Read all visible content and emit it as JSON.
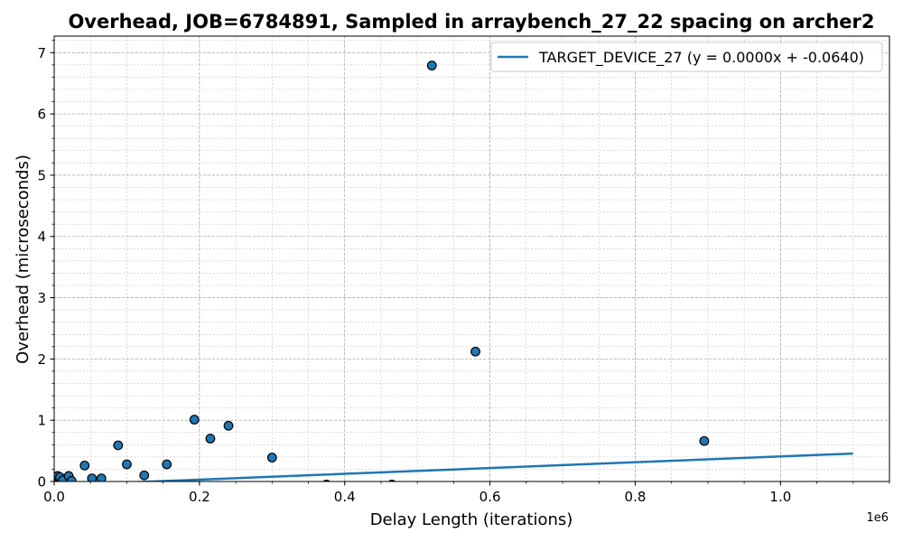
{
  "chart_data": {
    "type": "scatter",
    "title": "Overhead, JOB=6784891, Sampled in arraybench_27_22 spacing on archer2",
    "xlabel": "Delay Length (iterations)",
    "ylabel": "Overhead (microseconds)",
    "x_offset_label": "1e6",
    "xlim": [
      0,
      1150000
    ],
    "ylim": [
      0,
      7.27
    ],
    "x_ticks": [
      {
        "value": 0,
        "label": "0.0"
      },
      {
        "value": 200000,
        "label": "0.2"
      },
      {
        "value": 400000,
        "label": "0.4"
      },
      {
        "value": 600000,
        "label": "0.6"
      },
      {
        "value": 800000,
        "label": "0.8"
      },
      {
        "value": 1000000,
        "label": "1.0"
      }
    ],
    "y_ticks": [
      {
        "value": 0,
        "label": "0"
      },
      {
        "value": 1,
        "label": "1"
      },
      {
        "value": 2,
        "label": "2"
      },
      {
        "value": 3,
        "label": "3"
      },
      {
        "value": 4,
        "label": "4"
      },
      {
        "value": 5,
        "label": "5"
      },
      {
        "value": 6,
        "label": "6"
      },
      {
        "value": 7,
        "label": "7"
      }
    ],
    "grid": true,
    "legend_position": "top-right",
    "point_color": "#1f77b4",
    "line_color": "#1f77b4",
    "points": [
      {
        "x": 0,
        "y": 0.03
      },
      {
        "x": 1000,
        "y": 0.06
      },
      {
        "x": 3000,
        "y": 0.08
      },
      {
        "x": 5000,
        "y": 0.09
      },
      {
        "x": 8000,
        "y": 0.07
      },
      {
        "x": 12000,
        "y": 0.02
      },
      {
        "x": 20000,
        "y": 0.09
      },
      {
        "x": 24000,
        "y": 0.01
      },
      {
        "x": 42000,
        "y": 0.26
      },
      {
        "x": 52000,
        "y": 0.05
      },
      {
        "x": 65000,
        "y": 0.05
      },
      {
        "x": 88000,
        "y": 0.59
      },
      {
        "x": 100000,
        "y": 0.28
      },
      {
        "x": 124000,
        "y": 0.1
      },
      {
        "x": 155000,
        "y": 0.28
      },
      {
        "x": 193000,
        "y": 1.01
      },
      {
        "x": 215000,
        "y": 0.7
      },
      {
        "x": 240000,
        "y": 0.91
      },
      {
        "x": 300000,
        "y": 0.39
      },
      {
        "x": 375000,
        "y": -0.05
      },
      {
        "x": 465000,
        "y": -0.05
      },
      {
        "x": 520000,
        "y": 6.79
      },
      {
        "x": 580000,
        "y": 2.12
      },
      {
        "x": 895000,
        "y": 0.66
      }
    ],
    "series": [
      {
        "name": "TARGET_DEVICE_27 (y = 0.0000x + -0.0640)",
        "type": "line",
        "x": [
          0,
          1100000
        ],
        "y": [
          -0.064,
          0.456
        ]
      }
    ]
  }
}
